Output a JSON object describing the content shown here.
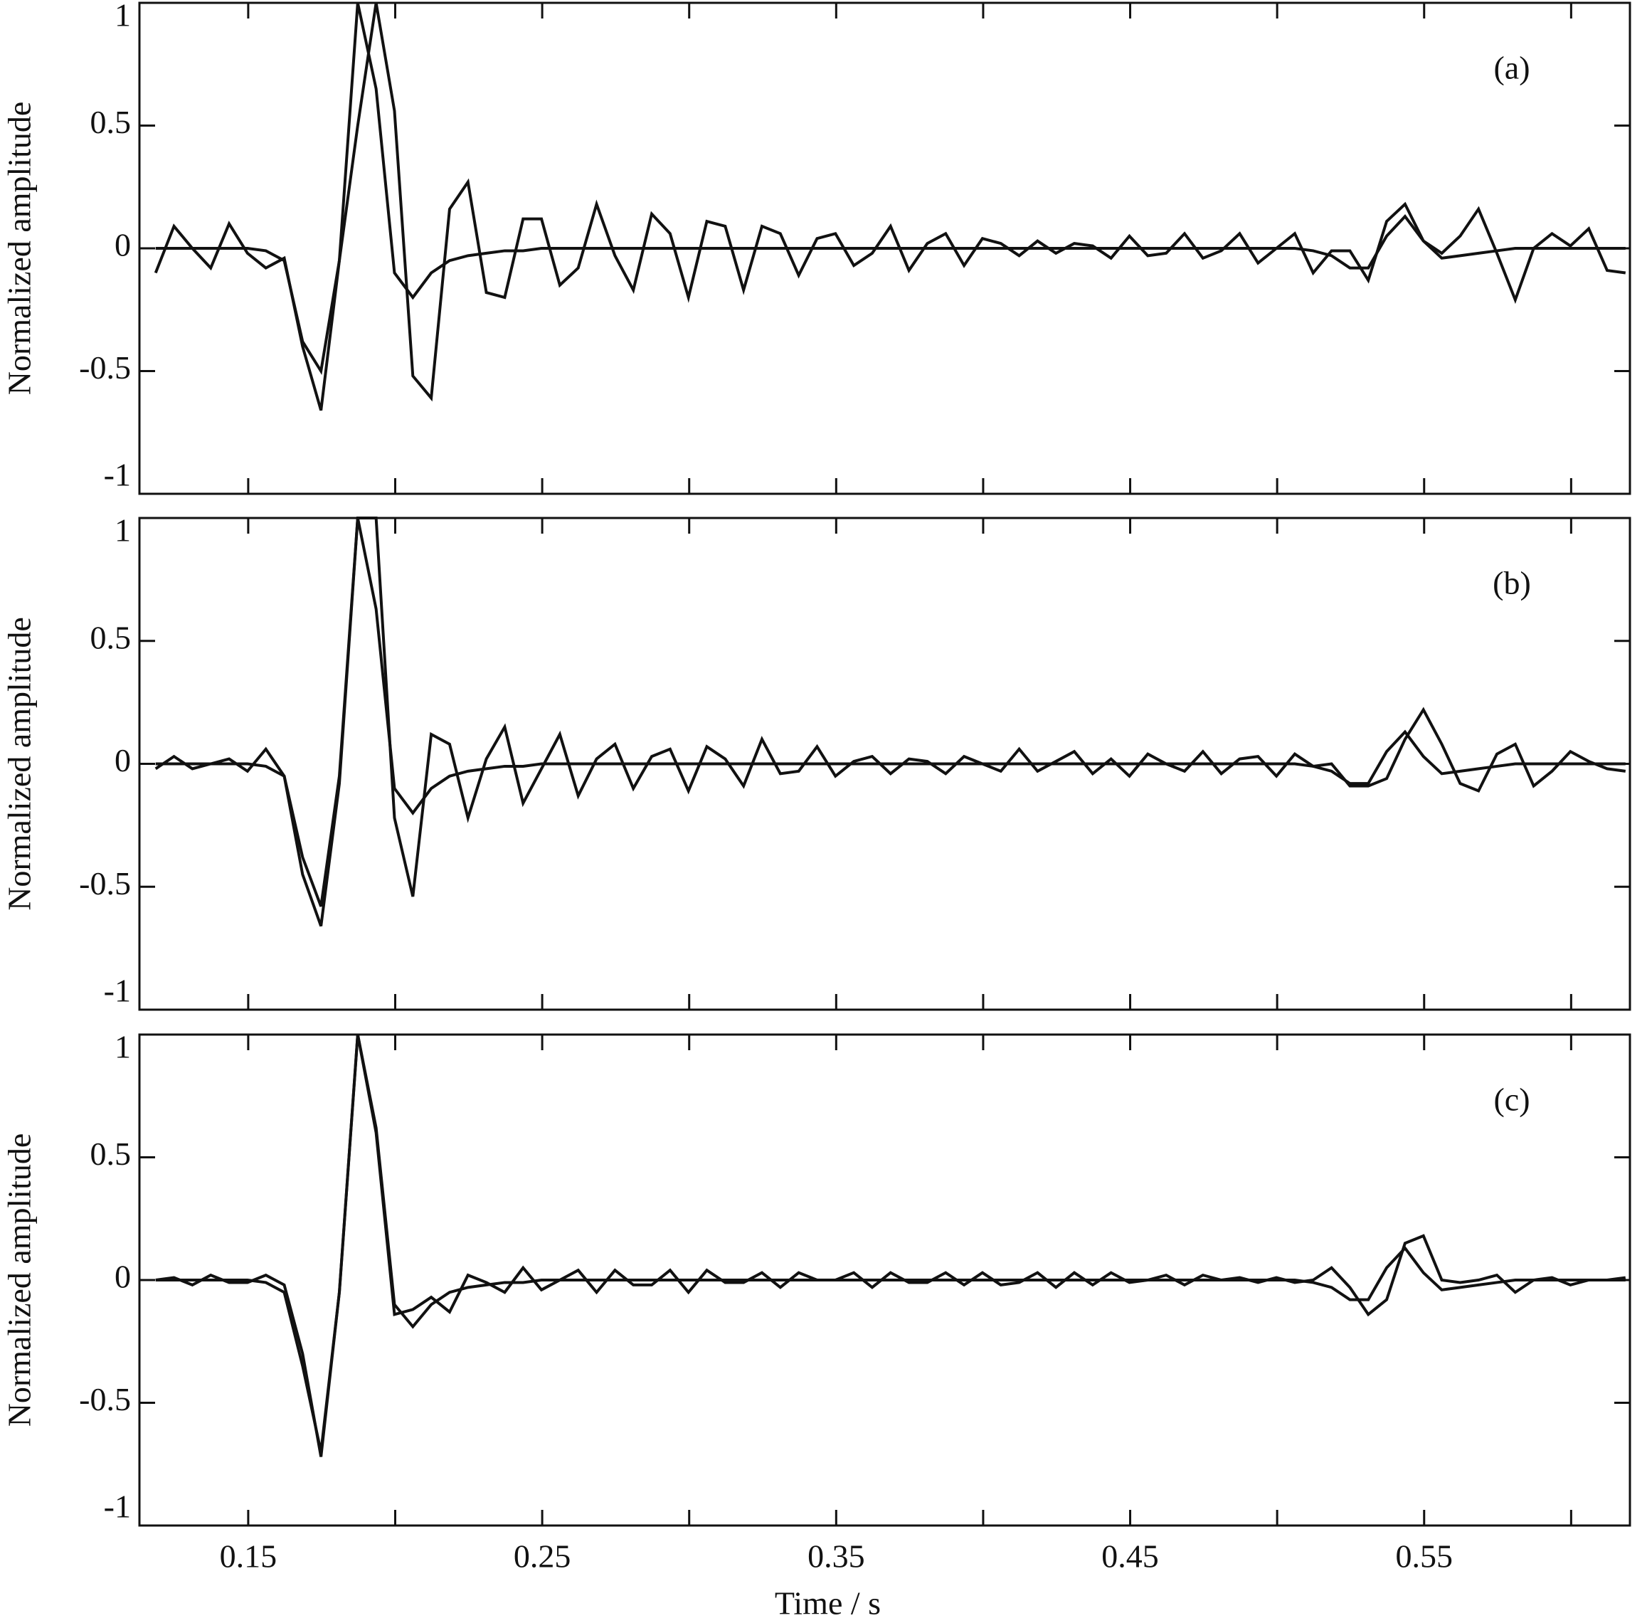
{
  "chart_data": [
    {
      "type": "line",
      "annotation": "(a)",
      "ylabel": "Normalized amplitude",
      "xtick_labels": false,
      "xlim": [
        0.113,
        0.62
      ],
      "ylim": [
        -1,
        1
      ],
      "yticks": [
        -1,
        -0.5,
        0,
        0.5,
        1
      ],
      "xticks": [
        0.15,
        0.25,
        0.35,
        0.45,
        0.55
      ],
      "xminor_ticks": [
        0.2,
        0.3,
        0.4,
        0.5,
        0.6
      ],
      "x": [
        0.1185,
        0.12475,
        0.131,
        0.13725,
        0.1435,
        0.14975,
        0.156,
        0.16225,
        0.1685,
        0.17475,
        0.181,
        0.18725,
        0.1935,
        0.19975,
        0.206,
        0.21225,
        0.2185,
        0.22475,
        0.231,
        0.23725,
        0.2435,
        0.24975,
        0.256,
        0.26225,
        0.2685,
        0.27475,
        0.281,
        0.28725,
        0.2935,
        0.29975,
        0.306,
        0.31225,
        0.3185,
        0.32475,
        0.331,
        0.33725,
        0.3435,
        0.34975,
        0.356,
        0.36225,
        0.3685,
        0.37475,
        0.381,
        0.38725,
        0.3935,
        0.39975,
        0.406,
        0.41225,
        0.4185,
        0.42475,
        0.431,
        0.43725,
        0.4435,
        0.44975,
        0.456,
        0.46225,
        0.4685,
        0.47475,
        0.481,
        0.48725,
        0.4935,
        0.49975,
        0.506,
        0.51225,
        0.5185,
        0.52475,
        0.531,
        0.53725,
        0.5435,
        0.54975,
        0.556,
        0.56225,
        0.5685,
        0.57475,
        0.581,
        0.58725,
        0.5935,
        0.59975,
        0.606,
        0.61225,
        0.6185
      ],
      "series": [
        {
          "color": "#111111",
          "values": [
            0,
            0,
            0,
            0,
            0,
            0,
            -0.01,
            -0.05,
            -0.38,
            -0.5,
            -0.05,
            1,
            0.65,
            -0.1,
            -0.2,
            -0.1,
            -0.05,
            -0.03,
            -0.02,
            -0.01,
            -0.01,
            0,
            0,
            0,
            0,
            0,
            0,
            0,
            0,
            0,
            0,
            0,
            0,
            0,
            0,
            0,
            0,
            0,
            0,
            0,
            0,
            0,
            0,
            0,
            0,
            0,
            0,
            0,
            0,
            0,
            0,
            0,
            0,
            0,
            0,
            0,
            0,
            0,
            0,
            0,
            0,
            0,
            0,
            -0.01,
            -0.03,
            -0.08,
            -0.08,
            0.05,
            0.13,
            0.03,
            -0.04,
            -0.03,
            -0.02,
            -0.01,
            0,
            0,
            0,
            0,
            0,
            0,
            0
          ]
        },
        {
          "color": "#111111",
          "values": [
            -0.1,
            0.09,
            0.0,
            -0.08,
            0.1,
            -0.02,
            -0.08,
            -0.04,
            -0.4,
            -0.66,
            -0.05,
            0.5,
            1,
            0.56,
            -0.52,
            -0.61,
            0.16,
            0.27,
            -0.18,
            -0.2,
            0.12,
            0.12,
            -0.15,
            -0.08,
            0.18,
            -0.03,
            -0.17,
            0.14,
            0.06,
            -0.2,
            0.11,
            0.09,
            -0.17,
            0.09,
            0.06,
            -0.11,
            0.04,
            0.06,
            -0.07,
            -0.02,
            0.09,
            -0.09,
            0.02,
            0.06,
            -0.07,
            0.04,
            0.02,
            -0.03,
            0.03,
            -0.02,
            0.02,
            0.01,
            -0.04,
            0.05,
            -0.03,
            -0.02,
            0.06,
            -0.04,
            -0.01,
            0.06,
            -0.06,
            0.0,
            0.06,
            -0.1,
            -0.01,
            -0.01,
            -0.13,
            0.11,
            0.18,
            0.03,
            -0.02,
            0.05,
            0.16,
            -0.02,
            -0.21,
            0.0,
            0.06,
            0.01,
            0.08,
            -0.09,
            -0.1
          ]
        }
      ]
    },
    {
      "type": "line",
      "annotation": "(b)",
      "ylabel": "Normalized amplitude",
      "xtick_labels": false,
      "xlim": [
        0.113,
        0.62
      ],
      "ylim": [
        -1,
        1
      ],
      "yticks": [
        -1,
        -0.5,
        0,
        0.5,
        1
      ],
      "xticks": [
        0.15,
        0.25,
        0.35,
        0.45,
        0.55
      ],
      "xminor_ticks": [
        0.2,
        0.3,
        0.4,
        0.5,
        0.6
      ],
      "x": [
        0.1185,
        0.12475,
        0.131,
        0.13725,
        0.1435,
        0.14975,
        0.156,
        0.16225,
        0.1685,
        0.17475,
        0.181,
        0.18725,
        0.1935,
        0.19975,
        0.206,
        0.21225,
        0.2185,
        0.22475,
        0.231,
        0.23725,
        0.2435,
        0.24975,
        0.256,
        0.26225,
        0.2685,
        0.27475,
        0.281,
        0.28725,
        0.2935,
        0.29975,
        0.306,
        0.31225,
        0.3185,
        0.32475,
        0.331,
        0.33725,
        0.3435,
        0.34975,
        0.356,
        0.36225,
        0.3685,
        0.37475,
        0.381,
        0.38725,
        0.3935,
        0.39975,
        0.406,
        0.41225,
        0.4185,
        0.42475,
        0.431,
        0.43725,
        0.4435,
        0.44975,
        0.456,
        0.46225,
        0.4685,
        0.47475,
        0.481,
        0.48725,
        0.4935,
        0.49975,
        0.506,
        0.51225,
        0.5185,
        0.52475,
        0.531,
        0.53725,
        0.5435,
        0.54975,
        0.556,
        0.56225,
        0.5685,
        0.57475,
        0.581,
        0.58725,
        0.5935,
        0.59975,
        0.606,
        0.61225,
        0.6185
      ],
      "series": [
        {
          "color": "#111111",
          "values": [
            0,
            0,
            0,
            0,
            0,
            0,
            -0.01,
            -0.05,
            -0.38,
            -0.58,
            -0.05,
            1,
            0.63,
            -0.1,
            -0.2,
            -0.1,
            -0.05,
            -0.03,
            -0.02,
            -0.01,
            -0.01,
            0,
            0,
            0,
            0,
            0,
            0,
            0,
            0,
            0,
            0,
            0,
            0,
            0,
            0,
            0,
            0,
            0,
            0,
            0,
            0,
            0,
            0,
            0,
            0,
            0,
            0,
            0,
            0,
            0,
            0,
            0,
            0,
            0,
            0,
            0,
            0,
            0,
            0,
            0,
            0,
            0,
            0,
            -0.01,
            -0.03,
            -0.08,
            -0.08,
            0.05,
            0.13,
            0.03,
            -0.04,
            -0.03,
            -0.02,
            -0.01,
            0,
            0,
            0,
            0,
            0,
            0,
            0
          ]
        },
        {
          "color": "#111111",
          "values": [
            -0.02,
            0.03,
            -0.02,
            0.0,
            0.02,
            -0.03,
            0.06,
            -0.05,
            -0.45,
            -0.66,
            -0.08,
            1,
            1,
            -0.22,
            -0.54,
            0.12,
            0.08,
            -0.22,
            0.02,
            0.15,
            -0.16,
            -0.02,
            0.12,
            -0.13,
            0.02,
            0.08,
            -0.1,
            0.03,
            0.06,
            -0.11,
            0.07,
            0.02,
            -0.09,
            0.1,
            -0.04,
            -0.03,
            0.07,
            -0.05,
            0.01,
            0.03,
            -0.04,
            0.02,
            0.01,
            -0.04,
            0.03,
            0.0,
            -0.03,
            0.06,
            -0.03,
            0.01,
            0.05,
            -0.04,
            0.02,
            -0.05,
            0.04,
            0.0,
            -0.03,
            0.05,
            -0.04,
            0.02,
            0.03,
            -0.05,
            0.04,
            -0.01,
            0.0,
            -0.09,
            -0.09,
            -0.06,
            0.1,
            0.22,
            0.08,
            -0.08,
            -0.11,
            0.04,
            0.08,
            -0.09,
            -0.03,
            0.05,
            0.01,
            -0.02,
            -0.03
          ]
        }
      ]
    },
    {
      "type": "line",
      "annotation": "(c)",
      "ylabel": "Normalized amplitude",
      "xlabel": "Time / s",
      "xtick_labels": true,
      "xlim": [
        0.113,
        0.62
      ],
      "ylim": [
        -1,
        1
      ],
      "yticks": [
        -1,
        -0.5,
        0,
        0.5,
        1
      ],
      "xticks": [
        0.15,
        0.25,
        0.35,
        0.45,
        0.55
      ],
      "xminor_ticks": [
        0.2,
        0.3,
        0.4,
        0.5,
        0.6
      ],
      "x": [
        0.1185,
        0.12475,
        0.131,
        0.13725,
        0.1435,
        0.14975,
        0.156,
        0.16225,
        0.1685,
        0.17475,
        0.181,
        0.18725,
        0.1935,
        0.19975,
        0.206,
        0.21225,
        0.2185,
        0.22475,
        0.231,
        0.23725,
        0.2435,
        0.24975,
        0.256,
        0.26225,
        0.2685,
        0.27475,
        0.281,
        0.28725,
        0.2935,
        0.29975,
        0.306,
        0.31225,
        0.3185,
        0.32475,
        0.331,
        0.33725,
        0.3435,
        0.34975,
        0.356,
        0.36225,
        0.3685,
        0.37475,
        0.381,
        0.38725,
        0.3935,
        0.39975,
        0.406,
        0.41225,
        0.4185,
        0.42475,
        0.431,
        0.43725,
        0.4435,
        0.44975,
        0.456,
        0.46225,
        0.4685,
        0.47475,
        0.481,
        0.48725,
        0.4935,
        0.49975,
        0.506,
        0.51225,
        0.5185,
        0.52475,
        0.531,
        0.53725,
        0.5435,
        0.54975,
        0.556,
        0.56225,
        0.5685,
        0.57475,
        0.581,
        0.58725,
        0.5935,
        0.59975,
        0.606,
        0.61225,
        0.6185
      ],
      "series": [
        {
          "color": "#111111",
          "values": [
            0,
            0,
            0,
            0,
            0,
            0,
            -0.01,
            -0.05,
            -0.35,
            -0.7,
            -0.05,
            1,
            0.62,
            -0.1,
            -0.19,
            -0.1,
            -0.05,
            -0.03,
            -0.02,
            -0.01,
            -0.01,
            0,
            0,
            0,
            0,
            0,
            0,
            0,
            0,
            0,
            0,
            0,
            0,
            0,
            0,
            0,
            0,
            0,
            0,
            0,
            0,
            0,
            0,
            0,
            0,
            0,
            0,
            0,
            0,
            0,
            0,
            0,
            0,
            0,
            0,
            0,
            0,
            0,
            0,
            0,
            0,
            0,
            0,
            -0.01,
            -0.03,
            -0.08,
            -0.08,
            0.05,
            0.13,
            0.03,
            -0.04,
            -0.03,
            -0.02,
            -0.01,
            0,
            0,
            0,
            0,
            0,
            0,
            0
          ]
        },
        {
          "color": "#111111",
          "values": [
            0.0,
            0.01,
            -0.02,
            0.02,
            -0.01,
            -0.01,
            0.02,
            -0.02,
            -0.3,
            -0.72,
            -0.05,
            1,
            0.6,
            -0.14,
            -0.12,
            -0.07,
            -0.13,
            0.02,
            -0.01,
            -0.05,
            0.05,
            -0.04,
            0.0,
            0.04,
            -0.05,
            0.04,
            -0.02,
            -0.02,
            0.04,
            -0.05,
            0.04,
            -0.01,
            -0.01,
            0.03,
            -0.03,
            0.03,
            0.0,
            0.0,
            0.03,
            -0.03,
            0.03,
            -0.01,
            -0.01,
            0.03,
            -0.02,
            0.03,
            -0.02,
            -0.01,
            0.03,
            -0.03,
            0.03,
            -0.02,
            0.03,
            -0.01,
            0.0,
            0.02,
            -0.02,
            0.02,
            0.0,
            0.01,
            -0.01,
            0.01,
            -0.01,
            0.0,
            0.05,
            -0.03,
            -0.14,
            -0.08,
            0.15,
            0.18,
            0.0,
            -0.01,
            0.0,
            0.02,
            -0.05,
            0.0,
            0.01,
            -0.02,
            0.0,
            0.0,
            0.01
          ]
        }
      ]
    }
  ]
}
